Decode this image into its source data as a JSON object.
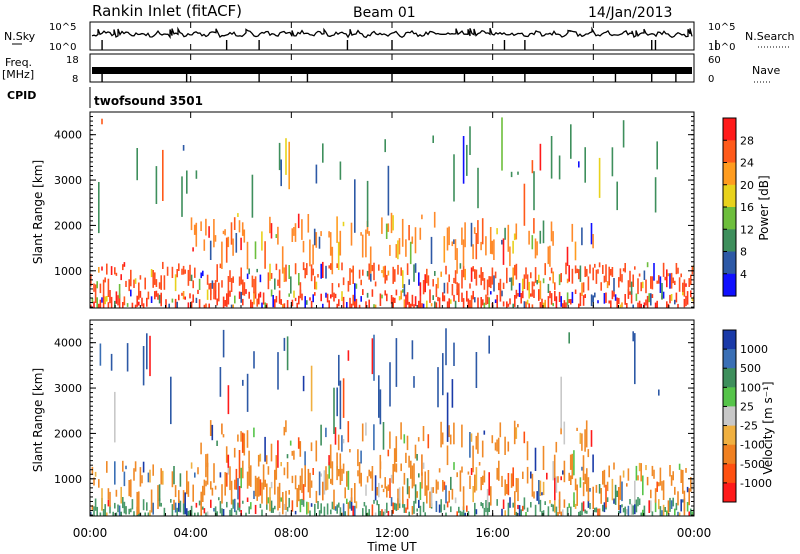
{
  "header": {
    "station": "Rankin Inlet (fitACF)",
    "beam": "Beam 01",
    "date": "14/Jan/2013"
  },
  "top_panels": {
    "nsky_label": "N.Sky",
    "nsky_ticks": [
      "10^5",
      "10^0"
    ],
    "nsearch_label": "N.Search",
    "nsearch_ticks": [
      "10^5",
      "10^0"
    ],
    "freq_label_1": "Freq.",
    "freq_label_2": "[MHz]",
    "freq_ticks": [
      "18",
      "8"
    ],
    "nave_label": "Nave",
    "nave_ticks": [
      "60",
      "0"
    ],
    "cpid_label": "CPID",
    "cpid_value": "twofsound 3501"
  },
  "chart_data": [
    {
      "type": "heatmap",
      "name": "power",
      "ylabel": "Slant Range [km]",
      "yticks": [
        "4000",
        "3000",
        "2000",
        "1000"
      ],
      "ylim": [
        180,
        4500
      ],
      "xlim": [
        0,
        24
      ],
      "colorbar_label": "Power [dB]",
      "colorbar_ticks": [
        "28",
        "24",
        "20",
        "16",
        "12",
        "8",
        "4"
      ],
      "colorbar_colors": [
        "#ff1a1a",
        "#ff5a1a",
        "#ff9c1f",
        "#e8d21c",
        "#6dbe3c",
        "#3e8f5c",
        "#2d59a6",
        "#1010ff"
      ],
      "bands": [
        {
          "x": [
            0,
            24
          ],
          "y": [
            250,
            600
          ],
          "dominant": "#ff3a1a"
        },
        {
          "x": [
            0,
            24
          ],
          "y": [
            700,
            1200
          ],
          "dominant": "#ff5020"
        },
        {
          "x": [
            4,
            20
          ],
          "y": [
            1500,
            2300
          ],
          "dominant": "#ff8a2a"
        },
        {
          "x": [
            0,
            23
          ],
          "y": [
            2800,
            4400
          ],
          "dominant": "#3e8f5c"
        }
      ]
    },
    {
      "type": "heatmap",
      "name": "velocity",
      "ylabel": "Slant Range [km]",
      "yticks": [
        "4000",
        "3000",
        "2000",
        "1000"
      ],
      "ylim": [
        180,
        4500
      ],
      "xlim": [
        0,
        24
      ],
      "xticks": [
        "00:00",
        "04:00",
        "08:00",
        "12:00",
        "16:00",
        "20:00",
        "00:00"
      ],
      "xlabel": "Time UT",
      "colorbar_label": "Velocity [m s⁻¹]",
      "colorbar_ticks": [
        "1000",
        "500",
        "100",
        "25",
        "-25",
        "-100",
        "-500",
        "-1000"
      ],
      "colorbar_colors": [
        "#1a3aa8",
        "#3a6fb5",
        "#3e8f5c",
        "#56c44a",
        "#c8c8c8",
        "#f0b040",
        "#f08020",
        "#ff5010",
        "#ff1a1a"
      ],
      "bands": [
        {
          "x": [
            0,
            24
          ],
          "y": [
            250,
            600
          ],
          "dominant": "#4a9a6a"
        },
        {
          "x": [
            0,
            24
          ],
          "y": [
            700,
            1400
          ],
          "dominant": "#f08a28"
        },
        {
          "x": [
            4,
            20
          ],
          "y": [
            1500,
            2300
          ],
          "dominant": "#f08a28"
        },
        {
          "x": [
            0,
            23
          ],
          "y": [
            2800,
            4400
          ],
          "dominant": "#2d59a6"
        }
      ]
    }
  ],
  "colors": {
    "frame": "#000000",
    "background": "#ffffff"
  }
}
